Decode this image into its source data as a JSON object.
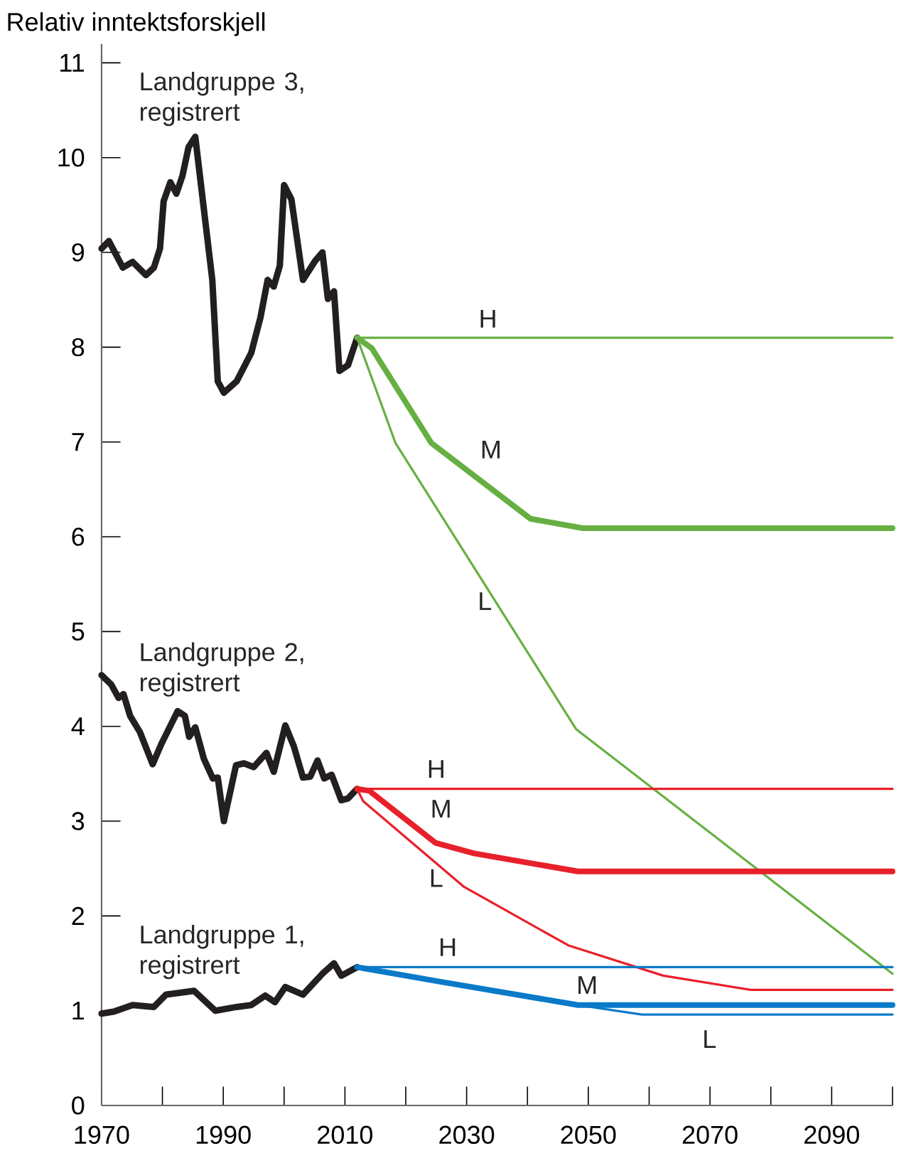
{
  "chart_data": {
    "type": "line",
    "ylabel": "Relativ inntektsforskjell",
    "xlim": [
      1970,
      2100
    ],
    "ylim": [
      0,
      11.2
    ],
    "xticks": [
      1970,
      {
        "value": 1980,
        "label": null
      },
      1990,
      {
        "value": 2000,
        "label": null
      },
      2010,
      {
        "value": 2020,
        "label": null
      },
      2030,
      {
        "value": 2040,
        "label": null
      },
      2050,
      {
        "value": 2060,
        "label": null
      },
      2070,
      {
        "value": 2080,
        "label": null
      },
      2090,
      {
        "value": 2100,
        "label": null
      }
    ],
    "yticks": [
      0,
      1,
      2,
      3,
      4,
      5,
      6,
      7,
      8,
      9,
      10,
      11
    ],
    "series": [
      {
        "color": "#231f20",
        "x": [
          1970,
          1971.2,
          1973.5,
          1975.1,
          1977.3,
          1978.6,
          1979.6,
          1980.2,
          1981.3,
          1982.3,
          1983.3,
          1984.3,
          1985.4,
          1988.2,
          1989.1,
          1990.1,
          1992.2,
          1994.6,
          1996.1,
          1997.3,
          1998.3,
          1999.3,
          2000,
          2001.2,
          2003.1,
          2005.1,
          2006.3,
          2007.2,
          2008.2,
          2009.1,
          2010.5,
          2012
        ],
        "values": [
          9.04,
          9.12,
          8.84,
          8.9,
          8.76,
          8.84,
          9.04,
          9.54,
          9.74,
          9.62,
          9.81,
          10.11,
          10.22,
          8.71,
          7.64,
          7.52,
          7.64,
          7.94,
          8.31,
          8.71,
          8.64,
          8.86,
          9.71,
          9.56,
          8.71,
          8.91,
          9.0,
          8.51,
          8.59,
          7.75,
          7.81,
          8.1
        ]
      },
      {
        "color": "#66b043",
        "x": [
          2012,
          2100
        ],
        "values": [
          8.1,
          8.1
        ]
      },
      {
        "color": "#66b043",
        "x": [
          2012,
          2014.4,
          2024.2,
          2040.5,
          2049.1,
          2100
        ],
        "values": [
          8.1,
          7.99,
          6.99,
          6.19,
          6.09,
          6.09
        ]
      },
      {
        "color": "#66b043",
        "x": [
          2012,
          2018.3,
          2048,
          2100
        ],
        "values": [
          8.1,
          6.99,
          3.97,
          1.39
        ]
      },
      {
        "color": "#231f20",
        "x": [
          1970,
          1971.6,
          1972.8,
          1973.6,
          1974.7,
          1976.3,
          1978.4,
          1979.8,
          1982.5,
          1983.7,
          1984.4,
          1985.4,
          1986.8,
          1988.3,
          1989.1,
          1990.1,
          1992.1,
          1993.4,
          1995,
          1997.1,
          1998.3,
          2000.2,
          2001.6,
          2003.1,
          2004.3,
          2005.5,
          2006.6,
          2007.8,
          2009.4,
          2010.5,
          2012
        ],
        "values": [
          4.54,
          4.44,
          4.3,
          4.34,
          4.11,
          3.94,
          3.6,
          3.81,
          4.16,
          4.11,
          3.89,
          3.99,
          3.66,
          3.45,
          3.46,
          3.0,
          3.59,
          3.61,
          3.57,
          3.72,
          3.52,
          4.01,
          3.79,
          3.46,
          3.47,
          3.64,
          3.45,
          3.49,
          3.22,
          3.24,
          3.34
        ]
      },
      {
        "color": "#e8202a",
        "x": [
          2012,
          2100
        ],
        "values": [
          3.34,
          3.34
        ]
      },
      {
        "color": "#e8202a",
        "x": [
          2012,
          2014,
          2024.9,
          2031.2,
          2048.3,
          2100
        ],
        "values": [
          3.34,
          3.32,
          2.77,
          2.66,
          2.47,
          2.47
        ]
      },
      {
        "color": "#e8202a",
        "x": [
          2012,
          2013,
          2029.5,
          2046.7,
          2062.3,
          2076.7,
          2100
        ],
        "values": [
          3.34,
          3.21,
          2.31,
          1.69,
          1.37,
          1.22,
          1.22
        ]
      },
      {
        "color": "#231f20",
        "x": [
          1970,
          1972,
          1975.1,
          1978.6,
          1980.6,
          1982.9,
          1985.2,
          1988.7,
          1992.2,
          1994.6,
          1996.9,
          1998.5,
          2000.2,
          2003.1,
          2006.3,
          2008.2,
          2009.4,
          2012
        ],
        "values": [
          0.97,
          0.99,
          1.06,
          1.04,
          1.17,
          1.19,
          1.21,
          1.0,
          1.04,
          1.06,
          1.16,
          1.09,
          1.25,
          1.17,
          1.39,
          1.5,
          1.37,
          1.46
        ]
      },
      {
        "color": "#0a7ac8",
        "x": [
          2012,
          2100
        ],
        "values": [
          1.46,
          1.46
        ]
      },
      {
        "color": "#0a7ac8",
        "x": [
          2012,
          2025.3,
          2048.3,
          2100
        ],
        "values": [
          1.46,
          1.31,
          1.06,
          1.06
        ]
      },
      {
        "color": "#0a7ac8",
        "x": [
          2012,
          2025.3,
          2048.3,
          2058.8,
          2100
        ],
        "values": [
          1.46,
          1.31,
          1.06,
          0.96,
          0.96
        ]
      }
    ],
    "annotations": [
      "Landgruppe 3, registrert",
      "H",
      "M",
      "L",
      "Landgruppe 2, registrert",
      "H",
      "M",
      "L",
      "Landgruppe 1, registrert",
      "H",
      "M",
      "L"
    ]
  }
}
